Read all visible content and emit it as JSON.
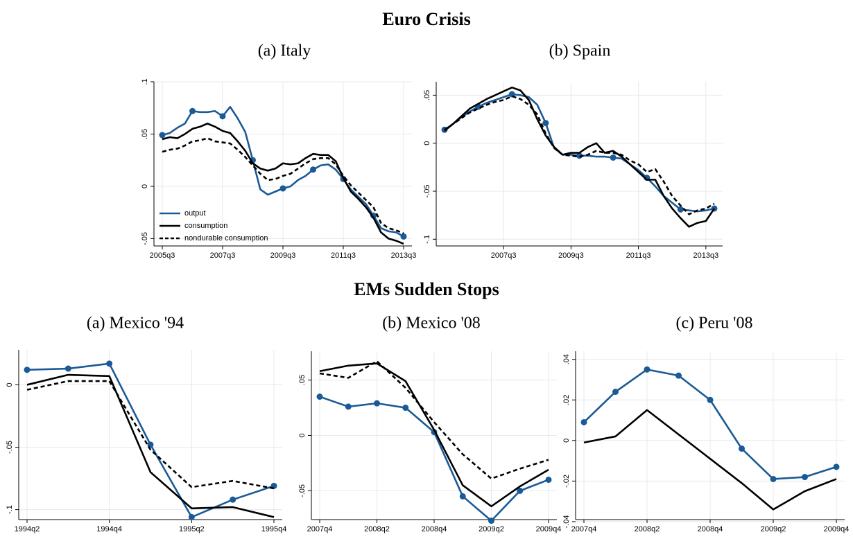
{
  "headings": [
    "Euro Crisis",
    "EMs Sudden Stops"
  ],
  "chart_data": [
    {
      "type": "line",
      "title": "(a) Italy",
      "legend": "lower left",
      "grid": true,
      "x": [
        "2005q3",
        "2005q4",
        "2006q1",
        "2006q2",
        "2006q3",
        "2006q4",
        "2007q1",
        "2007q2",
        "2007q3",
        "2007q4",
        "2008q1",
        "2008q2",
        "2008q3",
        "2008q4",
        "2009q1",
        "2009q2",
        "2009q3",
        "2009q4",
        "2010q1",
        "2010q2",
        "2010q3",
        "2010q4",
        "2011q1",
        "2011q2",
        "2011q3",
        "2011q4",
        "2012q1",
        "2012q2",
        "2012q3",
        "2012q4",
        "2013q1",
        "2013q2",
        "2013q3"
      ],
      "xticks": [
        "2005q3",
        "2007q3",
        "2009q3",
        "2011q3",
        "2013q3"
      ],
      "ylim": [
        -0.057,
        0.1
      ],
      "yticks": [
        {
          "value": -0.05,
          "label": "-.05"
        },
        0,
        {
          "value": 0.05,
          "label": ".05"
        },
        {
          "value": 0.1,
          "label": ".1"
        }
      ],
      "series": [
        {
          "name": "output",
          "color": "#1a5a96",
          "marker_every": 4,
          "values": [
            0.049,
            0.051,
            0.056,
            0.06,
            0.072,
            0.071,
            0.071,
            0.072,
            0.067,
            0.076,
            0.065,
            0.052,
            0.025,
            -0.003,
            -0.008,
            -0.005,
            -0.002,
            0.0,
            0.006,
            0.01,
            0.016,
            0.02,
            0.021,
            0.016,
            0.007,
            -0.003,
            -0.01,
            -0.017,
            -0.028,
            -0.04,
            -0.043,
            -0.044,
            -0.048
          ]
        },
        {
          "name": "consumption",
          "color": "#000000",
          "values": [
            0.045,
            0.047,
            0.046,
            0.05,
            0.055,
            0.057,
            0.06,
            0.057,
            0.053,
            0.051,
            0.043,
            0.034,
            0.022,
            0.017,
            0.015,
            0.017,
            0.022,
            0.021,
            0.022,
            0.027,
            0.031,
            0.03,
            0.03,
            0.024,
            0.008,
            -0.005,
            -0.012,
            -0.02,
            -0.03,
            -0.044,
            -0.05,
            -0.052,
            -0.055
          ]
        },
        {
          "name": "nondurable consumption",
          "color": "#000000",
          "dash": true,
          "values": [
            0.033,
            0.035,
            0.036,
            0.039,
            0.043,
            0.044,
            0.046,
            0.043,
            0.042,
            0.041,
            0.035,
            0.028,
            0.02,
            0.012,
            0.006,
            0.007,
            0.01,
            0.012,
            0.017,
            0.022,
            0.026,
            0.027,
            0.027,
            0.021,
            0.01,
            0.001,
            -0.006,
            -0.013,
            -0.02,
            -0.035,
            -0.04,
            -0.042,
            -0.045
          ]
        }
      ]
    },
    {
      "type": "line",
      "title": "(b) Spain",
      "grid": true,
      "x": [
        "2005q4",
        "2006q1",
        "2006q2",
        "2006q3",
        "2006q4",
        "2007q1",
        "2007q2",
        "2007q3",
        "2007q4",
        "2008q1",
        "2008q2",
        "2008q3",
        "2008q4",
        "2009q1",
        "2009q2",
        "2009q3",
        "2009q4",
        "2010q1",
        "2010q2",
        "2010q3",
        "2010q4",
        "2011q1",
        "2011q2",
        "2011q3",
        "2011q4",
        "2012q1",
        "2012q2",
        "2012q3",
        "2012q4",
        "2013q1",
        "2013q2",
        "2013q3",
        "2013q4"
      ],
      "xticks": [
        "2007q3",
        "2009q3",
        "2011q3",
        "2013q3"
      ],
      "ylim": [
        -0.107,
        0.064
      ],
      "yticks": [
        {
          "value": -0.1,
          "label": "-.1"
        },
        {
          "value": -0.05,
          "label": "-.05"
        },
        0,
        {
          "value": 0.05,
          "label": ".05"
        }
      ],
      "series": [
        {
          "color": "#1a5a96",
          "marker_every": 4,
          "values": [
            0.014,
            0.02,
            0.027,
            0.033,
            0.038,
            0.042,
            0.045,
            0.048,
            0.051,
            0.05,
            0.048,
            0.04,
            0.021,
            -0.005,
            -0.012,
            -0.012,
            -0.013,
            -0.013,
            -0.014,
            -0.014,
            -0.015,
            -0.016,
            -0.022,
            -0.028,
            -0.036,
            -0.045,
            -0.055,
            -0.062,
            -0.069,
            -0.07,
            -0.071,
            -0.07,
            -0.068
          ]
        },
        {
          "color": "#000000",
          "values": [
            0.013,
            0.02,
            0.028,
            0.036,
            0.041,
            0.046,
            0.05,
            0.054,
            0.058,
            0.055,
            0.045,
            0.025,
            0.008,
            -0.004,
            -0.012,
            -0.01,
            -0.01,
            -0.004,
            0.0,
            -0.01,
            -0.008,
            -0.014,
            -0.022,
            -0.03,
            -0.038,
            -0.038,
            -0.055,
            -0.068,
            -0.078,
            -0.087,
            -0.083,
            -0.081,
            -0.068
          ]
        },
        {
          "color": "#000000",
          "dash": true,
          "values": [
            0.014,
            0.02,
            0.026,
            0.032,
            0.036,
            0.04,
            0.043,
            0.045,
            0.049,
            0.046,
            0.04,
            0.03,
            0.01,
            -0.005,
            -0.012,
            -0.013,
            -0.014,
            -0.012,
            -0.008,
            -0.01,
            -0.01,
            -0.012,
            -0.018,
            -0.022,
            -0.03,
            -0.027,
            -0.04,
            -0.055,
            -0.065,
            -0.074,
            -0.07,
            -0.068,
            -0.063
          ]
        }
      ]
    },
    {
      "type": "line",
      "title": "(a) Mexico '94",
      "grid": true,
      "x": [
        "1994q2",
        "1994q3",
        "1994q4",
        "1995q1",
        "1995q2",
        "1995q3",
        "1995q4"
      ],
      "xticks": [
        "1994q2",
        "1994q4",
        "1995q2",
        "1995q4"
      ],
      "ylim": [
        -0.108,
        0.028
      ],
      "yticks": [
        {
          "value": -0.1,
          "label": "-.1"
        },
        {
          "value": -0.05,
          "label": "-.05"
        },
        0
      ],
      "series": [
        {
          "color": "#1a5a96",
          "marker_every": 1,
          "values": [
            0.012,
            0.013,
            0.017,
            -0.048,
            -0.106,
            -0.092,
            -0.081
          ]
        },
        {
          "color": "#000000",
          "values": [
            0.0,
            0.008,
            0.007,
            -0.07,
            -0.099,
            -0.098,
            -0.106
          ]
        },
        {
          "color": "#000000",
          "dash": true,
          "values": [
            -0.004,
            0.003,
            0.003,
            -0.052,
            -0.082,
            -0.077,
            -0.083
          ]
        }
      ]
    },
    {
      "type": "line",
      "title": "(b) Mexico '08",
      "grid": true,
      "x": [
        "2007q4",
        "2008q1",
        "2008q2",
        "2008q3",
        "2008q4",
        "2009q1",
        "2009q2",
        "2009q3",
        "2009q4"
      ],
      "xticks": [
        "2007q4",
        "2008q2",
        "2008q4",
        "2009q2",
        "2009q4"
      ],
      "ylim": [
        -0.076,
        0.076
      ],
      "yticks": [
        {
          "value": -0.05,
          "label": "-.05"
        },
        0,
        {
          "value": 0.05,
          "label": ".05"
        }
      ],
      "series": [
        {
          "color": "#1a5a96",
          "marker_every": 1,
          "values": [
            0.035,
            0.026,
            0.029,
            0.025,
            0.003,
            -0.055,
            -0.077,
            -0.05,
            -0.04
          ]
        },
        {
          "color": "#000000",
          "values": [
            0.058,
            0.063,
            0.065,
            0.049,
            0.005,
            -0.045,
            -0.064,
            -0.046,
            -0.031
          ]
        },
        {
          "color": "#000000",
          "dash": true,
          "values": [
            0.056,
            0.052,
            0.067,
            0.043,
            0.012,
            -0.017,
            -0.039,
            -0.03,
            -0.022
          ]
        }
      ]
    },
    {
      "type": "line",
      "title": "(c) Peru '08",
      "grid": true,
      "x": [
        "2007q4",
        "2008q1",
        "2008q2",
        "2008q3",
        "2008q4",
        "2009q1",
        "2009q2",
        "2009q3",
        "2009q4"
      ],
      "xticks": [
        "2007q4",
        "2008q2",
        "2008q4",
        "2009q2",
        "2009q4"
      ],
      "ylim": [
        -0.039,
        0.044
      ],
      "yticks": [
        {
          "value": -0.04,
          "label": "-.04"
        },
        {
          "value": -0.02,
          "label": "-.02"
        },
        0,
        {
          "value": 0.02,
          "label": ".02"
        },
        {
          "value": 0.04,
          "label": ".04"
        }
      ],
      "series": [
        {
          "color": "#1a5a96",
          "marker_every": 1,
          "values": [
            0.009,
            0.024,
            0.035,
            0.032,
            0.02,
            -0.004,
            -0.019,
            -0.018,
            -0.013
          ]
        },
        {
          "color": "#000000",
          "values": [
            -0.001,
            0.002,
            0.015,
            0.003,
            -0.009,
            -0.021,
            -0.034,
            -0.025,
            -0.019
          ]
        }
      ]
    }
  ]
}
